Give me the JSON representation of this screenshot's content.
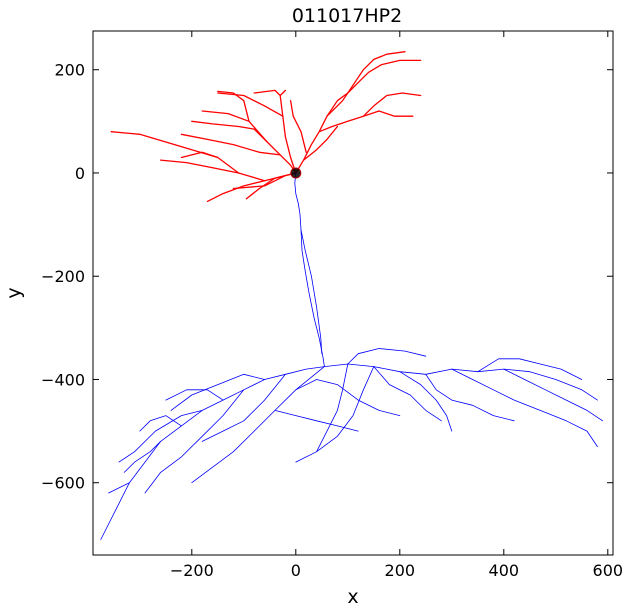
{
  "chart_data": {
    "type": "scatter",
    "title": "011017HP2",
    "xlabel": "x",
    "ylabel": "y",
    "xlim": [
      -390,
      610
    ],
    "ylim": [
      -740,
      275
    ],
    "xticks": [
      -200,
      0,
      200,
      400,
      600
    ],
    "yticks": [
      -600,
      -400,
      -200,
      0,
      200
    ],
    "xtick_labels": [
      "−200",
      "0",
      "200",
      "400",
      "600"
    ],
    "ytick_labels": [
      "−600",
      "−400",
      "−200",
      "0",
      "200"
    ],
    "grid": false,
    "legend": "none",
    "soma": {
      "x": 0,
      "y": 0,
      "color": "#000000"
    },
    "series": [
      {
        "color": "#ff0000",
        "branches": [
          [
            [
              0,
              0
            ],
            [
              -20,
              -5
            ],
            [
              -60,
              -15
            ],
            [
              -100,
              -25
            ],
            [
              -140,
              -40
            ],
            [
              -170,
              -55
            ]
          ],
          [
            [
              -60,
              -15
            ],
            [
              -110,
              0
            ],
            [
              -160,
              10
            ],
            [
              -210,
              20
            ],
            [
              -260,
              25
            ]
          ],
          [
            [
              -110,
              0
            ],
            [
              -150,
              30
            ],
            [
              -200,
              45
            ],
            [
              -250,
              60
            ],
            [
              -300,
              75
            ],
            [
              -355,
              80
            ]
          ],
          [
            [
              -150,
              30
            ],
            [
              -180,
              40
            ],
            [
              -220,
              30
            ]
          ],
          [
            [
              0,
              0
            ],
            [
              -10,
              15
            ],
            [
              -30,
              35
            ],
            [
              -55,
              60
            ],
            [
              -80,
              85
            ]
          ],
          [
            [
              -55,
              60
            ],
            [
              -90,
              100
            ],
            [
              -130,
              115
            ],
            [
              -180,
              120
            ]
          ],
          [
            [
              -90,
              100
            ],
            [
              -100,
              140
            ],
            [
              -120,
              155
            ],
            [
              -150,
              158
            ]
          ],
          [
            [
              -30,
              35
            ],
            [
              -70,
              40
            ],
            [
              -120,
              55
            ],
            [
              -170,
              65
            ],
            [
              -220,
              75
            ]
          ],
          [
            [
              -80,
              85
            ],
            [
              -110,
              90
            ],
            [
              -160,
              95
            ],
            [
              -200,
              100
            ]
          ],
          [
            [
              0,
              0
            ],
            [
              -10,
              30
            ],
            [
              -20,
              70
            ],
            [
              -25,
              110
            ],
            [
              -30,
              150
            ],
            [
              -20,
              160
            ]
          ],
          [
            [
              -25,
              110
            ],
            [
              -60,
              130
            ],
            [
              -100,
              150
            ],
            [
              -150,
              155
            ]
          ],
          [
            [
              -30,
              150
            ],
            [
              -40,
              160
            ],
            [
              -80,
              155
            ]
          ],
          [
            [
              0,
              0
            ],
            [
              15,
              25
            ],
            [
              30,
              55
            ],
            [
              45,
              80
            ],
            [
              60,
              110
            ],
            [
              80,
              140
            ],
            [
              100,
              155
            ]
          ],
          [
            [
              45,
              80
            ],
            [
              70,
              90
            ],
            [
              100,
              100
            ],
            [
              130,
              110
            ],
            [
              160,
              120
            ]
          ],
          [
            [
              60,
              110
            ],
            [
              90,
              140
            ],
            [
              110,
              170
            ],
            [
              130,
              200
            ],
            [
              150,
              220
            ],
            [
              175,
              230
            ],
            [
              210,
              235
            ]
          ],
          [
            [
              100,
              155
            ],
            [
              120,
              175
            ],
            [
              140,
              195
            ],
            [
              165,
              210
            ],
            [
              200,
              218
            ],
            [
              240,
              218
            ]
          ],
          [
            [
              130,
              110
            ],
            [
              150,
              130
            ],
            [
              175,
              150
            ],
            [
              205,
              155
            ],
            [
              240,
              150
            ]
          ],
          [
            [
              160,
              120
            ],
            [
              190,
              110
            ],
            [
              225,
              110
            ]
          ],
          [
            [
              20,
              40
            ],
            [
              10,
              80
            ],
            [
              -5,
              110
            ],
            [
              -10,
              140
            ]
          ],
          [
            [
              15,
              25
            ],
            [
              40,
              45
            ],
            [
              60,
              65
            ],
            [
              80,
              90
            ]
          ],
          [
            [
              0,
              0
            ],
            [
              -40,
              -10
            ],
            [
              -70,
              -30
            ],
            [
              -95,
              -50
            ]
          ],
          [
            [
              -20,
              -5
            ],
            [
              -60,
              -25
            ],
            [
              -120,
              -30
            ]
          ]
        ]
      },
      {
        "color": "#0000ff",
        "branches": [
          [
            [
              0,
              0
            ],
            [
              -2,
              -20
            ],
            [
              0,
              -40
            ],
            [
              5,
              -60
            ],
            [
              8,
              -80
            ],
            [
              10,
              -110
            ],
            [
              12,
              -150
            ],
            [
              18,
              -190
            ],
            [
              25,
              -230
            ],
            [
              35,
              -280
            ],
            [
              45,
              -320
            ],
            [
              52,
              -355
            ],
            [
              55,
              -375
            ]
          ],
          [
            [
              10,
              -110
            ],
            [
              18,
              -150
            ],
            [
              30,
              -200
            ],
            [
              40,
              -260
            ],
            [
              48,
              -320
            ],
            [
              50,
              -350
            ]
          ],
          [
            [
              55,
              -375
            ],
            [
              20,
              -380
            ],
            [
              -20,
              -390
            ],
            [
              -60,
              -400
            ],
            [
              -100,
              -420
            ],
            [
              -140,
              -440
            ],
            [
              -180,
              -460
            ],
            [
              -220,
              -490
            ],
            [
              -260,
              -520
            ],
            [
              -290,
              -560
            ],
            [
              -320,
              -600
            ],
            [
              -340,
              -640
            ],
            [
              -360,
              -680
            ],
            [
              -375,
              -710
            ]
          ],
          [
            [
              -100,
              -420
            ],
            [
              -140,
              -470
            ],
            [
              -180,
              -510
            ],
            [
              -220,
              -550
            ],
            [
              -260,
              -580
            ],
            [
              -290,
              -620
            ]
          ],
          [
            [
              -180,
              -460
            ],
            [
              -220,
              -470
            ],
            [
              -270,
              -500
            ],
            [
              -310,
              -540
            ],
            [
              -340,
              -560
            ]
          ],
          [
            [
              55,
              -375
            ],
            [
              100,
              -370
            ],
            [
              150,
              -375
            ],
            [
              200,
              -385
            ],
            [
              250,
              -390
            ],
            [
              300,
              -380
            ],
            [
              350,
              -385
            ],
            [
              400,
              -380
            ],
            [
              450,
              -385
            ],
            [
              500,
              -400
            ],
            [
              550,
              -420
            ],
            [
              580,
              -440
            ]
          ],
          [
            [
              300,
              -380
            ],
            [
              340,
              -400
            ],
            [
              380,
              -420
            ],
            [
              420,
              -440
            ],
            [
              470,
              -460
            ],
            [
              520,
              -480
            ],
            [
              560,
              -500
            ],
            [
              580,
              -530
            ]
          ],
          [
            [
              400,
              -380
            ],
            [
              440,
              -400
            ],
            [
              480,
              -420
            ],
            [
              520,
              -440
            ],
            [
              560,
              -460
            ],
            [
              590,
              -480
            ]
          ],
          [
            [
              200,
              -385
            ],
            [
              240,
              -410
            ],
            [
              270,
              -440
            ],
            [
              290,
              -470
            ],
            [
              300,
              -500
            ]
          ],
          [
            [
              100,
              -370
            ],
            [
              90,
              -420
            ],
            [
              80,
              -460
            ],
            [
              60,
              -500
            ],
            [
              40,
              -540
            ]
          ],
          [
            [
              55,
              -375
            ],
            [
              0,
              -420
            ],
            [
              -40,
              -460
            ],
            [
              -80,
              -500
            ],
            [
              -120,
              -540
            ],
            [
              -160,
              -570
            ],
            [
              -200,
              -600
            ]
          ],
          [
            [
              150,
              -375
            ],
            [
              130,
              -420
            ],
            [
              110,
              -470
            ],
            [
              80,
              -510
            ],
            [
              40,
              -540
            ],
            [
              0,
              -560
            ]
          ],
          [
            [
              -20,
              -390
            ],
            [
              -60,
              -440
            ],
            [
              -100,
              -480
            ],
            [
              -140,
              -500
            ],
            [
              -180,
              -520
            ]
          ],
          [
            [
              250,
              -390
            ],
            [
              270,
              -420
            ],
            [
              300,
              -440
            ],
            [
              340,
              -450
            ],
            [
              380,
              -470
            ],
            [
              420,
              -480
            ]
          ],
          [
            [
              350,
              -385
            ],
            [
              390,
              -360
            ],
            [
              430,
              -360
            ],
            [
              470,
              -370
            ],
            [
              510,
              -380
            ],
            [
              550,
              -400
            ]
          ],
          [
            [
              -60,
              -400
            ],
            [
              -100,
              -390
            ],
            [
              -150,
              -410
            ],
            [
              -200,
              -430
            ],
            [
              -240,
              -460
            ]
          ],
          [
            [
              100,
              -370
            ],
            [
              120,
              -350
            ],
            [
              160,
              -340
            ],
            [
              210,
              -345
            ],
            [
              250,
              -355
            ]
          ],
          [
            [
              -140,
              -440
            ],
            [
              -170,
              -420
            ],
            [
              -210,
              -420
            ],
            [
              -250,
              -440
            ]
          ],
          [
            [
              -220,
              -490
            ],
            [
              -250,
              -470
            ],
            [
              -280,
              -480
            ],
            [
              -300,
              -500
            ]
          ],
          [
            [
              0,
              -420
            ],
            [
              40,
              -400
            ],
            [
              80,
              -410
            ],
            [
              120,
              -440
            ],
            [
              160,
              -460
            ],
            [
              200,
              -470
            ]
          ],
          [
            [
              -40,
              -460
            ],
            [
              0,
              -470
            ],
            [
              40,
              -480
            ],
            [
              80,
              -490
            ],
            [
              120,
              -500
            ]
          ],
          [
            [
              150,
              -375
            ],
            [
              180,
              -410
            ],
            [
              220,
              -430
            ],
            [
              250,
              -460
            ],
            [
              280,
              -480
            ]
          ],
          [
            [
              -260,
              -520
            ],
            [
              -280,
              -540
            ],
            [
              -310,
              -560
            ],
            [
              -330,
              -580
            ]
          ],
          [
            [
              -320,
              -600
            ],
            [
              -340,
              -610
            ],
            [
              -360,
              -620
            ]
          ]
        ]
      }
    ]
  }
}
